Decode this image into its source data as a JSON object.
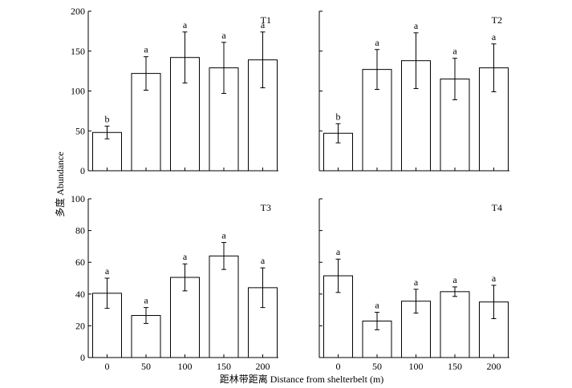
{
  "ylabel": "多度 Abundance",
  "xlabel": "距林带距离 Distance from shelterbelt (m)",
  "chart_data": [
    {
      "type": "bar",
      "title": "T1",
      "categories": [
        "0",
        "50",
        "100",
        "150",
        "200"
      ],
      "values": [
        48,
        122,
        142,
        129,
        139
      ],
      "errors": [
        8,
        21,
        32,
        32,
        35
      ],
      "letters": [
        "b",
        "a",
        "a",
        "a",
        "a"
      ],
      "ylim": [
        0,
        200
      ],
      "yticks": [
        0,
        50,
        100,
        150,
        200
      ]
    },
    {
      "type": "bar",
      "title": "T2",
      "categories": [
        "0",
        "50",
        "100",
        "150",
        "200"
      ],
      "values": [
        47,
        127,
        138,
        115,
        129
      ],
      "errors": [
        12,
        25,
        35,
        26,
        30
      ],
      "letters": [
        "b",
        "a",
        "a",
        "a",
        "a"
      ],
      "ylim": [
        0,
        200
      ],
      "yticks": [
        0,
        50,
        100,
        150,
        200
      ]
    },
    {
      "type": "bar",
      "title": "T3",
      "categories": [
        "0",
        "50",
        "100",
        "150",
        "200"
      ],
      "values": [
        40.5,
        26.5,
        50.5,
        64,
        44
      ],
      "errors": [
        9.5,
        5,
        8.5,
        8.5,
        12.5
      ],
      "letters": [
        "a",
        "a",
        "a",
        "a",
        "a"
      ],
      "ylim": [
        0,
        100
      ],
      "yticks": [
        0,
        20,
        40,
        60,
        80,
        100
      ]
    },
    {
      "type": "bar",
      "title": "T4",
      "categories": [
        "0",
        "50",
        "100",
        "150",
        "200"
      ],
      "values": [
        51.5,
        23,
        35.5,
        41.5,
        35
      ],
      "errors": [
        10.5,
        5.5,
        7.5,
        3,
        10.5
      ],
      "letters": [
        "a",
        "a",
        "a",
        "a",
        "a"
      ],
      "ylim": [
        0,
        100
      ],
      "yticks": [
        0,
        20,
        40,
        60,
        80,
        100
      ]
    }
  ]
}
